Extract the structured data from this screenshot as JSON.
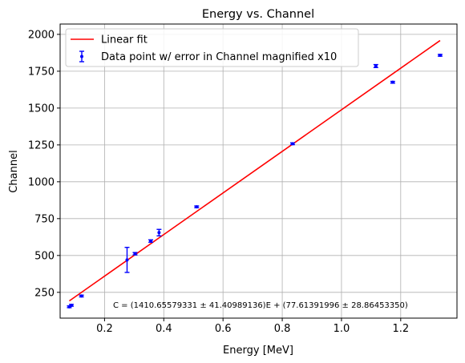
{
  "chart_data": {
    "type": "scatter",
    "title": "Energy vs. Channel",
    "xlabel": "Energy [MeV]",
    "ylabel": "Channel",
    "xlim": [
      0.05,
      1.39
    ],
    "ylim": [
      75,
      2070
    ],
    "xticks": [
      0.2,
      0.4,
      0.6,
      0.8,
      1.0,
      1.2
    ],
    "xtick_labels": [
      "0.2",
      "0.4",
      "0.6",
      "0.8",
      "1.0",
      "1.2"
    ],
    "yticks": [
      250,
      500,
      750,
      1000,
      1250,
      1500,
      1750,
      2000
    ],
    "ytick_labels": [
      "250",
      "500",
      "750",
      "1000",
      "1250",
      "1500",
      "1750",
      "2000"
    ],
    "grid": true,
    "legend_position": "top-left",
    "series": [
      {
        "name": "Linear fit",
        "kind": "line",
        "color": "#ff0000",
        "x": [
          0.081,
          1.333
        ],
        "y": [
          191.9,
          1958.2
        ]
      },
      {
        "name": "Data point w/ error in Channel magnified x10",
        "kind": "errorbar",
        "color": "#0000ff",
        "x": [
          0.081,
          0.088,
          0.122,
          0.276,
          0.303,
          0.356,
          0.384,
          0.511,
          0.835,
          1.116,
          1.173,
          1.333
        ],
        "y": [
          152,
          162,
          225,
          470,
          512,
          598,
          655,
          830,
          1258,
          1785,
          1675,
          1858
        ],
        "yerr": [
          6,
          6,
          6,
          85,
          8,
          8,
          22,
          6,
          6,
          10,
          6,
          6
        ]
      }
    ],
    "annotation": "$C = (1410.65579331 \\pm 41.40989136)E + (77.61391996 \\pm 28.86453350)$",
    "annotation_display": "C = (1410.65579331 ± 41.40989136)E + (77.61391996 ± 28.86453350)"
  }
}
